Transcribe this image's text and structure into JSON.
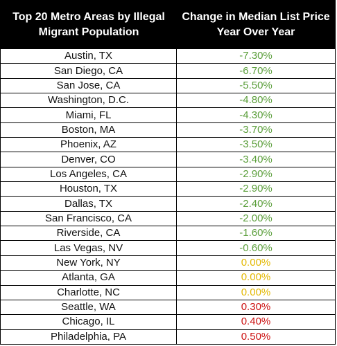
{
  "colors": {
    "negative": "#5a9e3a",
    "zero": "#e3b800",
    "positive": "#cc1111",
    "header_bg": "#000000",
    "header_text": "#ffffff"
  },
  "chart_data": {
    "type": "table",
    "title": "",
    "columns": [
      "Top 20 Metro Areas by Illegal Migrant Population",
      "Change in Median List Price Year Over Year"
    ],
    "rows": [
      {
        "metro": "Austin, TX",
        "change": "-7.30%",
        "value": -7.3
      },
      {
        "metro": "San Diego, CA",
        "change": "-6.70%",
        "value": -6.7
      },
      {
        "metro": "San Jose, CA",
        "change": "-5.50%",
        "value": -5.5
      },
      {
        "metro": "Washington, D.C.",
        "change": "-4.80%",
        "value": -4.8
      },
      {
        "metro": "Miami, FL",
        "change": "-4.30%",
        "value": -4.3
      },
      {
        "metro": "Boston, MA",
        "change": "-3.70%",
        "value": -3.7
      },
      {
        "metro": "Phoenix, AZ",
        "change": "-3.50%",
        "value": -3.5
      },
      {
        "metro": "Denver, CO",
        "change": "-3.40%",
        "value": -3.4
      },
      {
        "metro": "Los Angeles, CA",
        "change": "-2.90%",
        "value": -2.9
      },
      {
        "metro": "Houston, TX",
        "change": "-2.90%",
        "value": -2.9
      },
      {
        "metro": "Dallas, TX",
        "change": "-2.40%",
        "value": -2.4
      },
      {
        "metro": "San Francisco, CA",
        "change": "-2.00%",
        "value": -2.0
      },
      {
        "metro": "Riverside, CA",
        "change": "-1.60%",
        "value": -1.6
      },
      {
        "metro": "Las Vegas, NV",
        "change": "-0.60%",
        "value": -0.6
      },
      {
        "metro": "New York, NY",
        "change": "0.00%",
        "value": 0.0
      },
      {
        "metro": "Atlanta, GA",
        "change": "0.00%",
        "value": 0.0
      },
      {
        "metro": "Charlotte, NC",
        "change": "0.00%",
        "value": 0.0
      },
      {
        "metro": "Seattle, WA",
        "change": "0.30%",
        "value": 0.3
      },
      {
        "metro": "Chicago, IL",
        "change": "0.40%",
        "value": 0.4
      },
      {
        "metro": "Philadelphia, PA",
        "change": "0.50%",
        "value": 0.5
      }
    ]
  }
}
